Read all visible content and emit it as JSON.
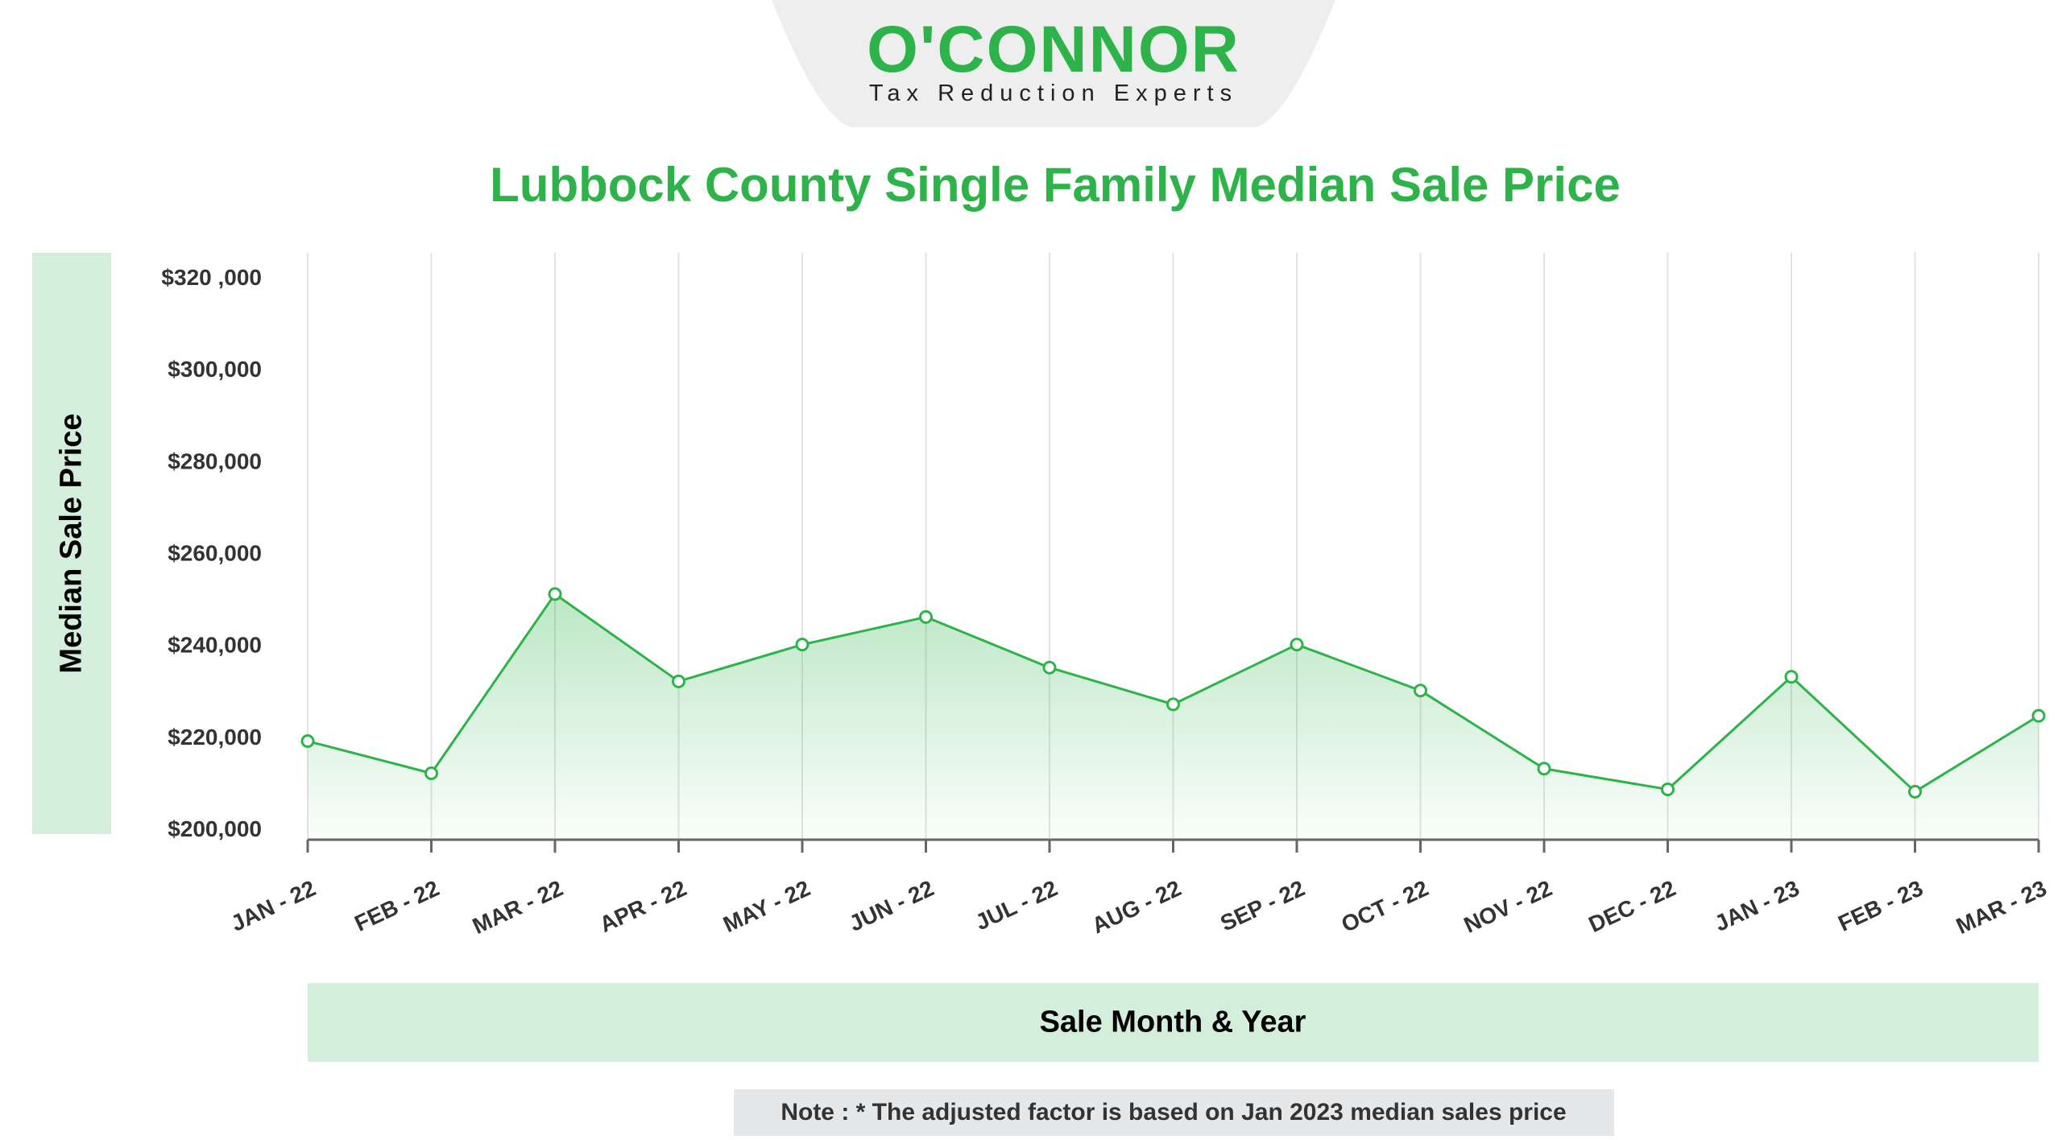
{
  "logo": {
    "wordmark": "O'CONNOR",
    "tagline": "Tax Reduction Experts"
  },
  "note": "Note : * The adjusted factor is based on Jan 2023 median sales price",
  "colors": {
    "accent": "#2db34a",
    "band": "#d4eedc",
    "note_bg": "#e6e7e9",
    "logo_bg": "#eeeeee"
  },
  "chart_data": {
    "type": "line",
    "title": "Lubbock County Single Family Median Sale Price",
    "xlabel": "Sale Month & Year",
    "ylabel": "Median Sale Price",
    "categories": [
      "JAN - 22",
      "FEB - 22",
      "MAR - 22",
      "APR - 22",
      "MAY - 22",
      "JUN - 22",
      "JUL - 22",
      "AUG - 22",
      "SEP - 22",
      "OCT - 22",
      "NOV - 22",
      "DEC - 22",
      "JAN - 23",
      "FEB - 23",
      "MAR - 23"
    ],
    "series": [
      {
        "values": [
          219000,
          212000,
          251000,
          232000,
          240000,
          246000,
          235000,
          227000,
          240000,
          230000,
          213000,
          208500,
          233000,
          208000,
          224500
        ]
      }
    ],
    "ylim": [
      200000,
      320000
    ],
    "yticks": [
      200000,
      220000,
      240000,
      260000,
      280000,
      300000,
      320000
    ],
    "ytick_labels": [
      "$200,000",
      "$220,000",
      "$240,000",
      "$260,000",
      "$280,000",
      "$300,000",
      "$320 ,000"
    ],
    "grid": "vertical",
    "area_fill": true,
    "markers": "hollow-circle"
  }
}
